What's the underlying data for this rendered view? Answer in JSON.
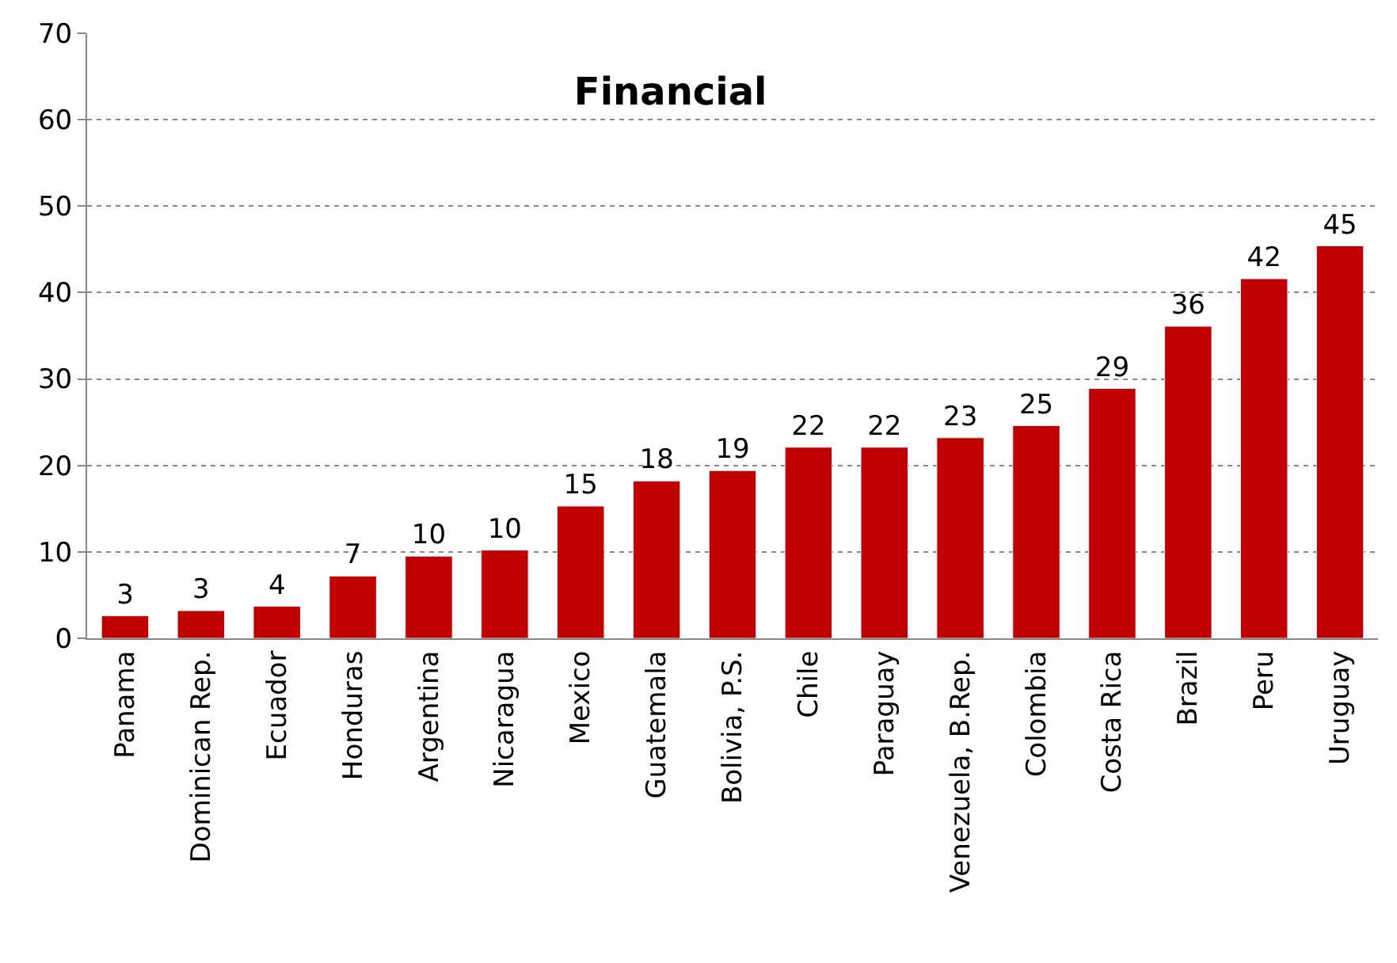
{
  "chart_data": {
    "type": "bar",
    "title": "Financial",
    "categories": [
      "Panama",
      "Dominican Rep.",
      "Ecuador",
      "Honduras",
      "Argentina",
      "Nicaragua",
      "Mexico",
      "Guatemala",
      "Bolivia, P.S.",
      "Chile",
      "Paraguay",
      "Venezuela, B.Rep.",
      "Colombia",
      "Costa Rica",
      "Brazil",
      "Peru",
      "Uruguay"
    ],
    "values": [
      2.6,
      3.2,
      3.7,
      7.2,
      9.5,
      10.2,
      15.3,
      18.2,
      19.4,
      22.1,
      22.1,
      23.2,
      24.6,
      28.9,
      36.1,
      41.6,
      45.4
    ],
    "value_labels": [
      "3",
      "3",
      "4",
      "7",
      "10",
      "10",
      "15",
      "18",
      "19",
      "22",
      "22",
      "23",
      "25",
      "29",
      "36",
      "42",
      "45"
    ],
    "color": "#c00000",
    "ylim": [
      0,
      70
    ],
    "yticks": [
      0,
      10,
      20,
      30,
      40,
      50,
      60,
      70
    ],
    "grid": "y",
    "legend": false
  }
}
